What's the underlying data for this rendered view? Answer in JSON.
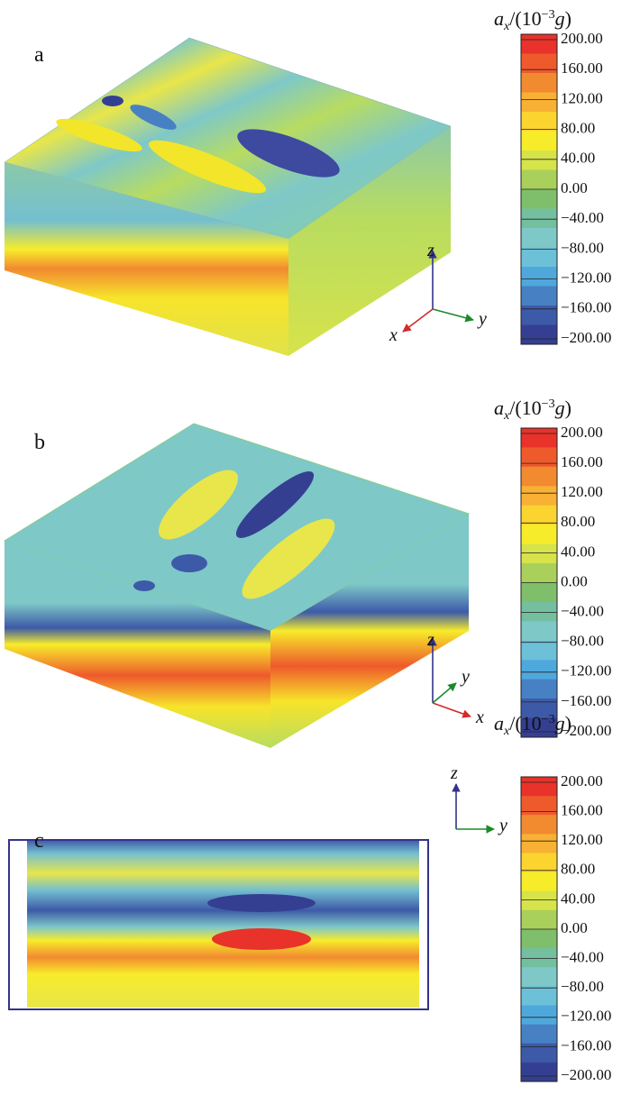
{
  "colorbar_colors": [
    "#e8322a",
    "#ee5a2c",
    "#f28a30",
    "#f8b134",
    "#fbd430",
    "#f7ec2a",
    "#d7e34a",
    "#a9d05a",
    "#7fbf6b",
    "#74bfa0",
    "#7ec8c8",
    "#6cc0d8",
    "#4fa8dc",
    "#4781c3",
    "#3d5aa8",
    "#353f92"
  ],
  "panels": [
    {
      "label": "a",
      "title": [
        "a",
        "x",
        "/(10",
        "−3",
        "g",
        ")"
      ],
      "ticks": [
        "200.00",
        "160.00",
        "120.00",
        "80.00",
        "40.00",
        "0.00",
        "−40.00",
        "−80.00",
        "−120.00",
        "−160.00",
        "−200.00"
      ],
      "axes": [
        "z",
        "y",
        "x"
      ]
    },
    {
      "label": "b",
      "title": [
        "a",
        "x",
        "/(10",
        "−3",
        "g",
        ")"
      ],
      "ticks": [
        "200.00",
        "160.00",
        "120.00",
        "80.00",
        "40.00",
        "0.00",
        "−40.00",
        "−80.00",
        "−120.00",
        "−160.00",
        "−200.00"
      ],
      "axes": [
        "z",
        "y",
        "x"
      ]
    },
    {
      "label": "c",
      "title": [
        "a",
        "x",
        "/(10",
        "−3",
        "g",
        ")"
      ],
      "ticks": [
        "200.00",
        "160.00",
        "120.00",
        "80.00",
        "40.00",
        "0.00",
        "−40.00",
        "−80.00",
        "−120.00",
        "−160.00",
        "−200.00"
      ],
      "axes": [
        "z",
        "y"
      ]
    }
  ]
}
